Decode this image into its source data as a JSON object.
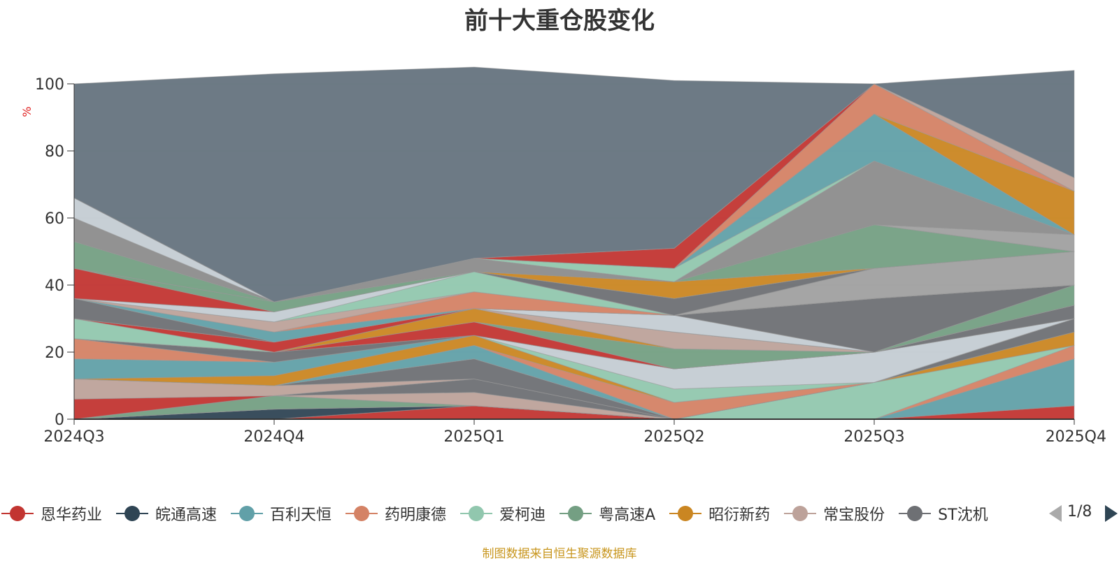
{
  "chart_data": {
    "type": "area",
    "stacked": true,
    "title": "前十大重仓股变化",
    "ylabel": "%",
    "ylim": [
      0,
      100
    ],
    "yticks": [
      0,
      20,
      40,
      60,
      80,
      100
    ],
    "categories": [
      "2024Q3",
      "2024Q4",
      "2025Q1",
      "2025Q2",
      "2025Q3",
      "2025Q4"
    ],
    "series": [
      {
        "name": "恩华药业",
        "color": "#c23531",
        "values": [
          0,
          0,
          4,
          0,
          0,
          4
        ]
      },
      {
        "name": "皖通高速",
        "color": "#2f4554",
        "values": [
          0,
          3,
          0,
          0,
          0,
          0
        ]
      },
      {
        "name": "百利天恒",
        "color": "#61a0a8",
        "values": [
          0,
          0,
          0,
          0,
          0,
          14
        ]
      },
      {
        "name": "药明康德",
        "color": "#d48265",
        "values": [
          0,
          0,
          0,
          0,
          0,
          4
        ]
      },
      {
        "name": "爱柯迪",
        "color": "#91c7ae",
        "values": [
          0,
          0,
          0,
          0,
          11,
          0
        ]
      },
      {
        "name": "粤高速A",
        "color": "#749f83",
        "values": [
          0,
          4,
          0,
          0,
          0,
          0
        ]
      },
      {
        "name": "昭衍新药",
        "color": "#ca8622",
        "values": [
          0,
          0,
          0,
          0,
          0,
          4
        ]
      },
      {
        "name": "常宝股份",
        "color": "#bda29a",
        "values": [
          0,
          0,
          4,
          0,
          0,
          0
        ]
      },
      {
        "name": "ST沈机",
        "color": "#6e7074",
        "values": [
          0,
          0,
          4,
          0,
          0,
          4
        ]
      },
      {
        "name": "",
        "color": "#c23531",
        "values": [
          6,
          0,
          0,
          0,
          0,
          0
        ]
      },
      {
        "name": "",
        "color": "#bda29a",
        "values": [
          6,
          3,
          0,
          0,
          0,
          0
        ]
      },
      {
        "name": "",
        "color": "#6e7074",
        "values": [
          0,
          0,
          6,
          0,
          0,
          0
        ]
      },
      {
        "name": "",
        "color": "#61a0a8",
        "values": [
          0,
          0,
          4,
          0,
          0,
          0
        ]
      },
      {
        "name": "",
        "color": "#d48265",
        "values": [
          0,
          0,
          0,
          5,
          0,
          0
        ]
      },
      {
        "name": "",
        "color": "#ca8622",
        "values": [
          0,
          3,
          3,
          0,
          0,
          0
        ]
      },
      {
        "name": "",
        "color": "#91c7ae",
        "values": [
          0,
          0,
          0,
          4,
          0,
          0
        ]
      },
      {
        "name": "",
        "color": "#c4ccd3",
        "values": [
          0,
          0,
          0,
          6,
          9,
          0
        ]
      },
      {
        "name": "",
        "color": "#61a0a8",
        "values": [
          6,
          4,
          0,
          0,
          0,
          0
        ]
      },
      {
        "name": "",
        "color": "#d48265",
        "values": [
          6,
          0,
          0,
          0,
          0,
          0
        ]
      },
      {
        "name": "",
        "color": "#6e7074",
        "values": [
          0,
          3,
          0,
          0,
          0,
          4
        ]
      },
      {
        "name": "",
        "color": "#c23531",
        "values": [
          0,
          0,
          4,
          0,
          0,
          0
        ]
      },
      {
        "name": "",
        "color": "#749f83",
        "values": [
          0,
          0,
          0,
          6,
          0,
          0
        ]
      },
      {
        "name": "",
        "color": "#ca8622",
        "values": [
          0,
          0,
          4,
          0,
          0,
          0
        ]
      },
      {
        "name": "",
        "color": "#bda29a",
        "values": [
          0,
          0,
          0,
          5,
          0,
          0
        ]
      },
      {
        "name": "",
        "color": "#91c7ae",
        "values": [
          6,
          0,
          0,
          0,
          0,
          0
        ]
      },
      {
        "name": "",
        "color": "#c23531",
        "values": [
          0,
          3,
          0,
          0,
          0,
          0
        ]
      },
      {
        "name": "",
        "color": "#c4ccd3",
        "values": [
          0,
          0,
          0,
          5,
          0,
          0
        ]
      },
      {
        "name": "",
        "color": "#749f83",
        "values": [
          0,
          0,
          0,
          0,
          0,
          6
        ]
      },
      {
        "name": "",
        "color": "#6e7074",
        "values": [
          6,
          0,
          0,
          0,
          16,
          0
        ]
      },
      {
        "name": "",
        "color": "#61a0a8",
        "values": [
          0,
          3,
          0,
          0,
          0,
          0
        ]
      },
      {
        "name": "",
        "color": "#d48265",
        "values": [
          0,
          0,
          5,
          0,
          0,
          0
        ]
      },
      {
        "name": "",
        "color": "#bda29a",
        "values": [
          0,
          3,
          0,
          0,
          0,
          0
        ]
      },
      {
        "name": "",
        "color": "#91c7ae",
        "values": [
          0,
          0,
          6,
          0,
          0,
          0
        ]
      },
      {
        "name": "",
        "color": "#c4ccd3",
        "values": [
          0,
          3,
          0,
          0,
          0,
          0
        ]
      },
      {
        "name": "",
        "color": "#a0a0a0",
        "values": [
          0,
          0,
          0,
          0,
          9,
          10
        ]
      },
      {
        "name": "",
        "color": "#c23531",
        "values": [
          9,
          0,
          0,
          0,
          0,
          0
        ]
      },
      {
        "name": "",
        "color": "#749f83",
        "values": [
          0,
          3,
          0,
          0,
          0,
          0
        ]
      },
      {
        "name": "",
        "color": "#6e7074",
        "values": [
          0,
          0,
          0,
          5,
          0,
          0
        ]
      },
      {
        "name": "",
        "color": "#ca8622",
        "values": [
          0,
          0,
          0,
          5,
          0,
          0
        ]
      },
      {
        "name": "",
        "color": "#749f83",
        "values": [
          8,
          0,
          0,
          0,
          13,
          0
        ]
      },
      {
        "name": "",
        "color": "#ca8622",
        "values": [
          0,
          0,
          0,
          0,
          0,
          0
        ]
      },
      {
        "name": "",
        "color": "#a0a0a0",
        "values": [
          0,
          0,
          0,
          0,
          0,
          5
        ]
      },
      {
        "name": "",
        "color": "#8c8c8c",
        "values": [
          7,
          0,
          4,
          0,
          19,
          0
        ]
      },
      {
        "name": "",
        "color": "#91c7ae",
        "values": [
          0,
          0,
          0,
          4,
          0,
          0
        ]
      },
      {
        "name": "",
        "color": "#61a0a8",
        "values": [
          0,
          0,
          0,
          0,
          14,
          0
        ]
      },
      {
        "name": "",
        "color": "#c4ccd3",
        "values": [
          6,
          0,
          0,
          0,
          0,
          0
        ]
      },
      {
        "name": "",
        "color": "#ca8622",
        "values": [
          0,
          0,
          0,
          0,
          0,
          13
        ]
      },
      {
        "name": "",
        "color": "#d48265",
        "values": [
          0,
          0,
          0,
          0,
          9,
          0
        ]
      },
      {
        "name": "",
        "color": "#c23531",
        "values": [
          0,
          0,
          0,
          6,
          0,
          0
        ]
      },
      {
        "name": "",
        "color": "#bda29a",
        "values": [
          0,
          0,
          0,
          0,
          0,
          4
        ]
      },
      {
        "name": "",
        "color": "#65737e",
        "values": [
          34,
          68,
          57,
          50,
          0,
          32
        ]
      }
    ]
  },
  "legend": {
    "page_indicator": "1/8"
  },
  "source_note": "制图数据来自恒生聚源数据库"
}
